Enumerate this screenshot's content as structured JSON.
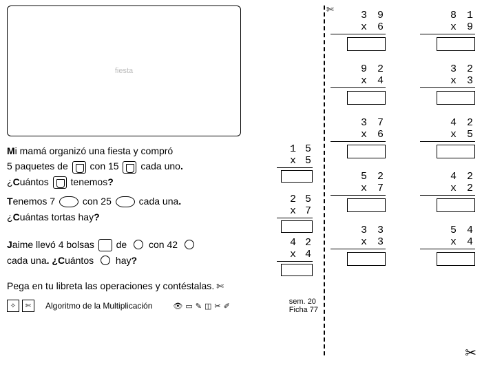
{
  "illustration_alt": "fiesta",
  "problems": [
    {
      "line1_a": "M",
      "line1_b": "i mamá organizó una fiesta y compró",
      "line2_a": "5 paquetes de ",
      "line2_b": " con 15 ",
      "line2_c": " cada uno",
      "q_a": "¿",
      "q_b": "C",
      "q_c": "uántos ",
      "q_d": " tenemos",
      "q_e": "?",
      "calc_top": "1 5",
      "calc_bot": "x 5"
    },
    {
      "line1_a": "T",
      "line1_b": "enemos 7 ",
      "line1_c": " con 25 ",
      "line1_d": " cada una",
      "q_a": "¿",
      "q_b": "C",
      "q_c": "uántas tortas hay",
      "q_e": "?",
      "calc_top": "2 5",
      "calc_bot": "x 7"
    },
    {
      "line1_a": "J",
      "line1_b": "aime llevó 4 bolsas ",
      "line1_c": " de ",
      "line1_d": " con 42 ",
      "line2_a": "cada una",
      "line2_b": ". ¿",
      "line2_c": "C",
      "line2_d": "uántos ",
      "line2_e": " hay",
      "line2_f": "?",
      "calc_top": "4 2",
      "calc_bot": "x 4"
    }
  ],
  "instruction_a": "P",
  "instruction_b": "ega en tu libreta las operaciones y contéstalas",
  "instruction_c": ".",
  "footer": {
    "title": "Algoritmo de la Multiplicación",
    "sem_label": "sem.",
    "sem_val": "20",
    "ficha_label": "Ficha",
    "ficha_val": "77"
  },
  "right_problems": [
    [
      {
        "top": "3 9",
        "bot": "x 6"
      },
      {
        "top": "8 1",
        "bot": "x 9"
      }
    ],
    [
      {
        "top": "9 2",
        "bot": "x 4"
      },
      {
        "top": "3 2",
        "bot": "x 3"
      }
    ],
    [
      {
        "top": "3 7",
        "bot": "x 6"
      },
      {
        "top": "4 2",
        "bot": "x 5"
      }
    ],
    [
      {
        "top": "5 2",
        "bot": "x 7"
      },
      {
        "top": "4 2",
        "bot": "x 2"
      }
    ],
    [
      {
        "top": "3 3",
        "bot": "x 3"
      },
      {
        "top": "5 4",
        "bot": "x 4"
      }
    ]
  ],
  "glyphs": {
    "walker": "✄",
    "scissors": "✂",
    "eye": "👁",
    "book": "📖",
    "pencil": "✎",
    "glue": "◫"
  }
}
